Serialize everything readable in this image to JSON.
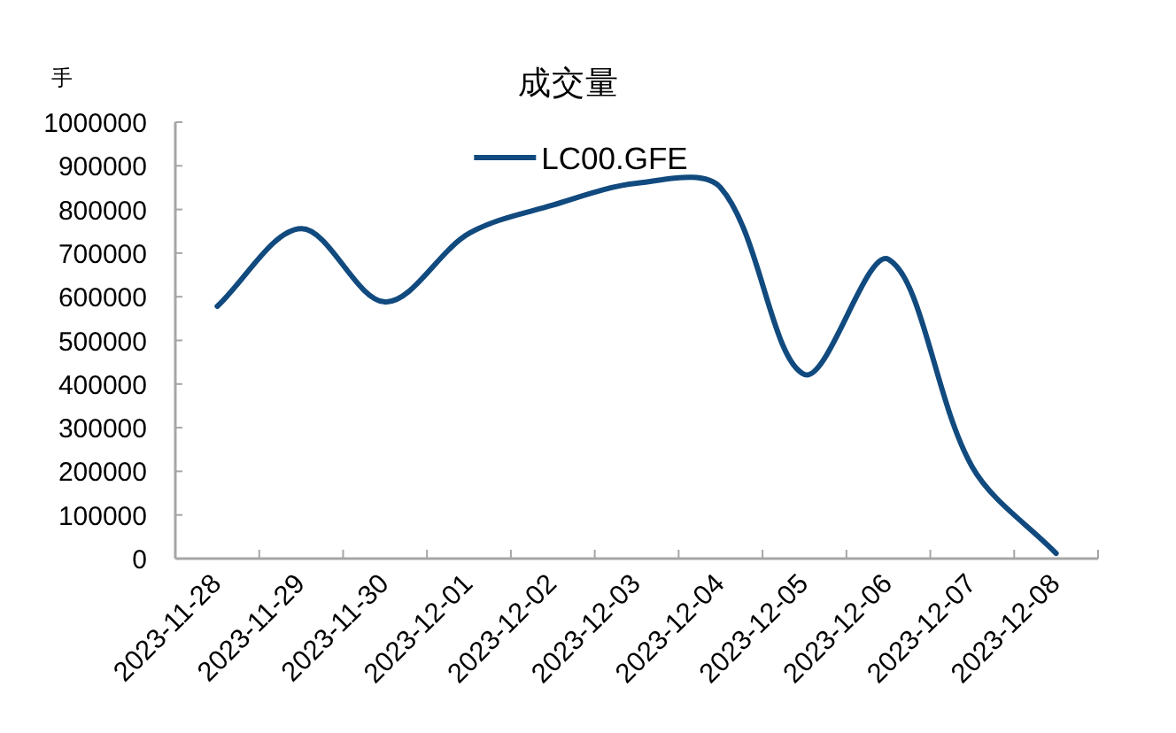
{
  "chart_data": {
    "type": "line",
    "title": "成交量",
    "ylabel": "手",
    "categories": [
      "2023-11-28",
      "2023-11-29",
      "2023-11-30",
      "2023-12-01",
      "2023-12-02",
      "2023-12-03",
      "2023-12-04",
      "2023-12-05",
      "2023-12-06",
      "2023-12-07",
      "2023-12-08"
    ],
    "series": [
      {
        "name": "LC00.GFE",
        "color": "#114a7e",
        "values": [
          578000,
          756000,
          588000,
          745000,
          810000,
          860000,
          850000,
          422000,
          686000,
          210000,
          12000
        ]
      }
    ],
    "ylim": [
      0,
      1000000
    ],
    "yticks": [
      0,
      100000,
      200000,
      300000,
      400000,
      500000,
      600000,
      700000,
      800000,
      900000,
      1000000
    ],
    "legend": "top",
    "grid": false
  }
}
